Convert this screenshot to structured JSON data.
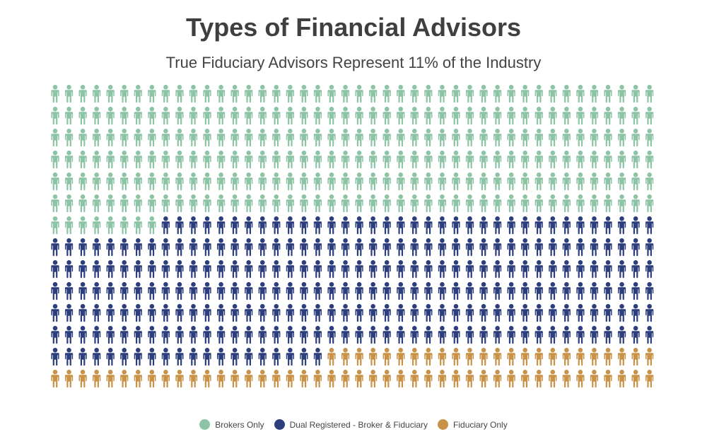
{
  "chart_data": {
    "type": "waffle",
    "title": "Types of Financial Advisors",
    "subtitle": "True Fiduciary Advisors Represent 11% of the Industry",
    "grid": {
      "rows": 14,
      "columns": 44,
      "total_icons": 616
    },
    "series": [
      {
        "name": "Brokers Only",
        "count": 272,
        "color": "#8dc4a5"
      },
      {
        "name": "Dual Registered - Broker & Fiduciary",
        "count": 276,
        "color": "#2d3e7d"
      },
      {
        "name": "Fiduciary Only",
        "count": 68,
        "color": "#c99249"
      }
    ],
    "legend_position": "bottom-center",
    "icon": "person-icon"
  }
}
